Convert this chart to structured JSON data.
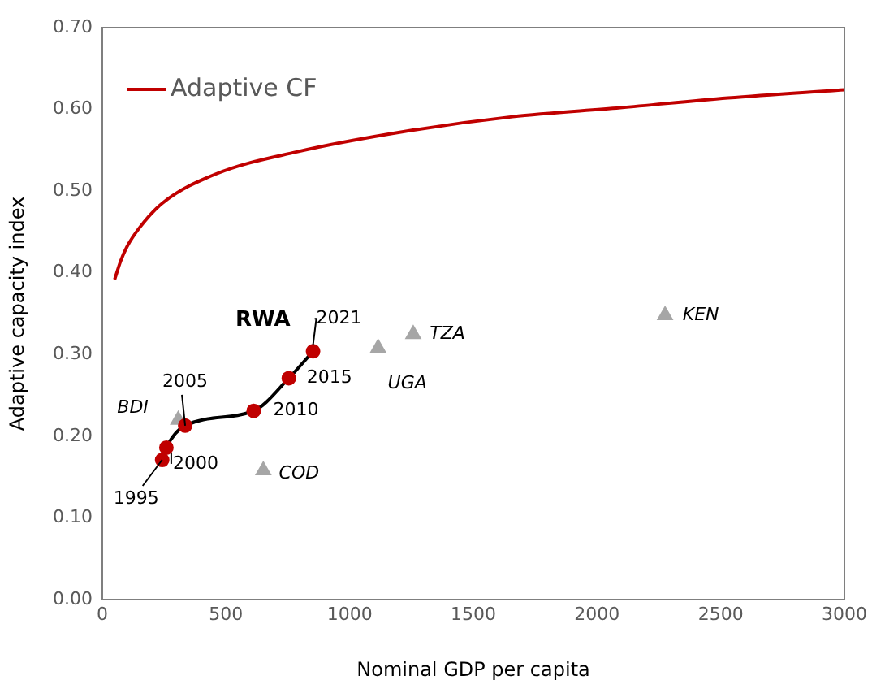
{
  "chart_data": {
    "type": "line",
    "xlabel": "Nominal GDP per capita",
    "ylabel": "Adaptive capacity index",
    "xlim": [
      0,
      3000
    ],
    "xticks": [
      0,
      500,
      1000,
      1500,
      2000,
      2500,
      3000
    ],
    "ylim": [
      0,
      0.7
    ],
    "yticks": [
      {
        "value": 0,
        "label": "0.00"
      },
      {
        "value": 0.1,
        "label": "0.10"
      },
      {
        "value": 0.2,
        "label": "0.20"
      },
      {
        "value": 0.3,
        "label": "0.30"
      },
      {
        "value": 0.4,
        "label": "0.40"
      },
      {
        "value": 0.5,
        "label": "0.50"
      },
      {
        "value": 0.6,
        "label": "0.60"
      },
      {
        "value": 0.7,
        "label": "0.70"
      }
    ],
    "grid": false,
    "legend": "top left",
    "series": [
      {
        "name": "Adaptive CF",
        "type": "line",
        "color": "#c00000",
        "marker": "none",
        "x": [
          50,
          75,
          100,
          150,
          242,
          460,
          786,
          1222,
          1658,
          2094,
          2529,
          3000
        ],
        "values": [
          0.392,
          0.415,
          0.432,
          0.455,
          0.485,
          0.521,
          0.548,
          0.573,
          0.591,
          0.602,
          0.614,
          0.624
        ]
      },
      {
        "name": "RWA",
        "type": "line",
        "color": "#000000",
        "colors": [
          "#c00000",
          "#c00000",
          "#c00000",
          "#c00000",
          "#c00000",
          "#c00000"
        ],
        "marker": "circle",
        "x": [
          242,
          259,
          335,
          612,
          754,
          852
        ],
        "values": [
          0.171,
          0.186,
          0.213,
          0.231,
          0.271,
          0.304
        ]
      },
      {
        "type": "scatter",
        "color": "#a6a6a6",
        "marker": "triangle",
        "x": [
          307,
          651,
          1115,
          1257,
          2275
        ],
        "values": [
          0.22,
          0.158,
          0.308,
          0.325,
          0.348
        ]
      }
    ],
    "annotations": [
      {
        "text": "1995",
        "x": 242,
        "y": 0.171
      },
      {
        "text": "2000",
        "x": 259,
        "y": 0.186
      },
      {
        "text": "2005",
        "x": 335,
        "y": 0.213
      },
      {
        "text": "2010",
        "x": 612,
        "y": 0.231
      },
      {
        "text": "2015",
        "x": 754,
        "y": 0.271
      },
      {
        "text": "2021",
        "x": 852,
        "y": 0.304
      },
      {
        "text": "BDI",
        "x": 307,
        "y": 0.22
      },
      {
        "text": "COD",
        "x": 651,
        "y": 0.158
      },
      {
        "text": "UGA",
        "x": 1115,
        "y": 0.308
      },
      {
        "text": "TZA",
        "x": 1257,
        "y": 0.325
      },
      {
        "text": "KEN",
        "x": 2275,
        "y": 0.348
      }
    ]
  }
}
